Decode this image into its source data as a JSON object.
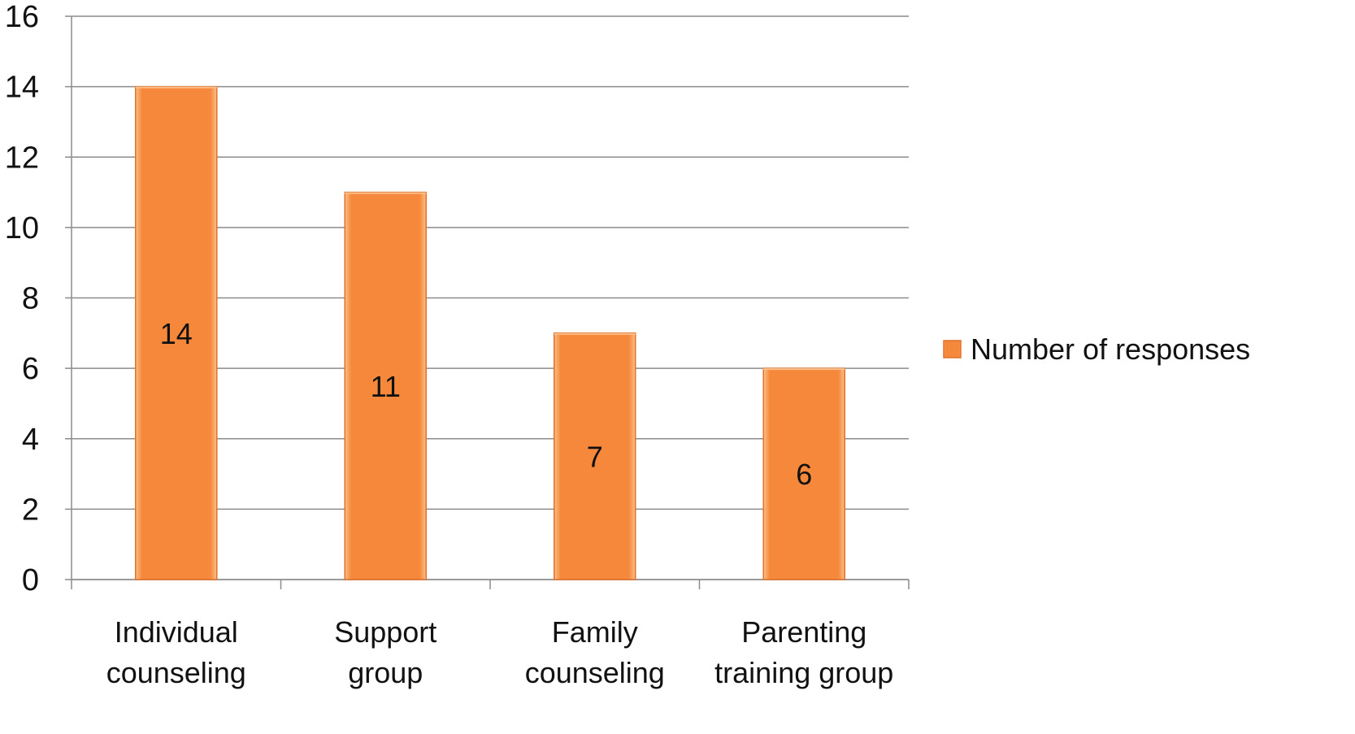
{
  "chart_data": {
    "type": "bar",
    "categories": [
      [
        "Individual",
        "counseling"
      ],
      [
        "Support",
        "group"
      ],
      [
        "Family",
        "counseling"
      ],
      [
        "Parenting",
        "training group"
      ]
    ],
    "series": [
      {
        "name": "Number of responses",
        "values": [
          14,
          11,
          7,
          6
        ]
      }
    ],
    "data_labels": [
      "14",
      "11",
      "7",
      "6"
    ],
    "ylim": [
      0,
      16
    ],
    "yticks": [
      "0",
      "2",
      "4",
      "6",
      "8",
      "10",
      "12",
      "14",
      "16"
    ],
    "grid": true,
    "legend_position": "right",
    "colors": {
      "bar": "#F5883A",
      "bar_edge": "#E0702A",
      "bar_highlight": "#FBC08A",
      "grid": "#8c8c8c",
      "axis": "#8c8c8c"
    }
  }
}
